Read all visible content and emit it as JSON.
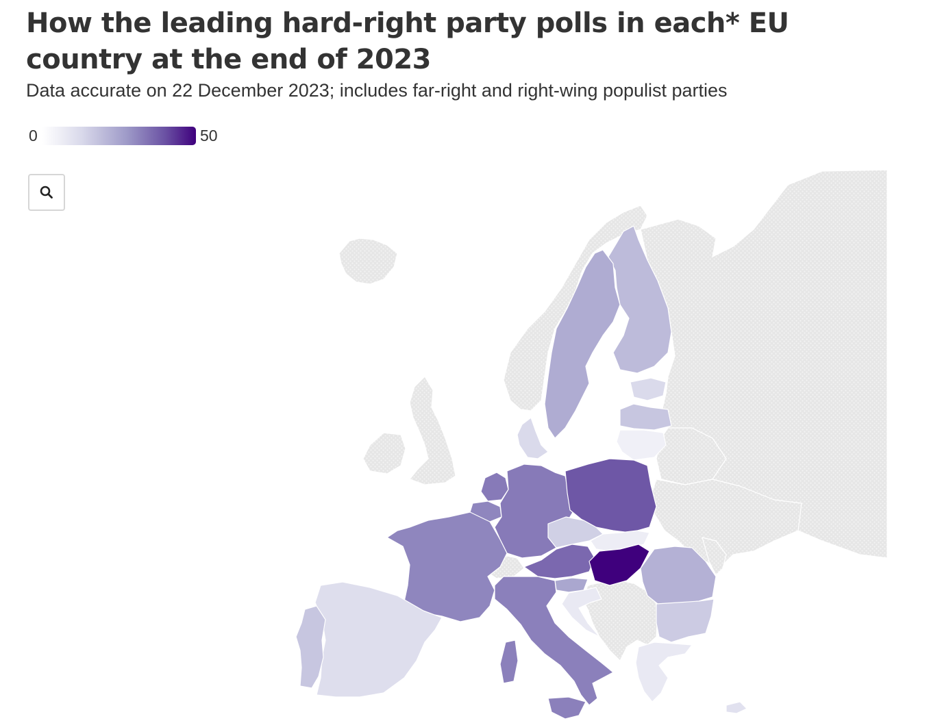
{
  "header": {
    "title": "How the leading hard-right party polls in each* EU country at the end of 2023",
    "subtitle": "Data accurate on 22 December 2023; includes far-right and right-wing populist parties"
  },
  "legend": {
    "min_label": "0",
    "max_label": "50",
    "min": 0,
    "max": 50,
    "color_low": "#ffffff",
    "color_high": "#3f007d"
  },
  "zoom": {
    "icon": "search-icon"
  },
  "colors": {
    "non_eu": "#e6e6e6",
    "non_eu_dots": "#f3f3f3",
    "border": "#ffffff"
  },
  "countries": [
    {
      "name": "Hungary",
      "shade": 50
    },
    {
      "name": "Poland",
      "shade": 34
    },
    {
      "name": "Austria",
      "shade": 31
    },
    {
      "name": "Germany",
      "shade": 28
    },
    {
      "name": "Netherlands",
      "shade": 28
    },
    {
      "name": "Italy",
      "shade": 27
    },
    {
      "name": "France",
      "shade": 26
    },
    {
      "name": "Belgium",
      "shade": 26
    },
    {
      "name": "Slovenia",
      "shade": 20
    },
    {
      "name": "Sweden",
      "shade": 19
    },
    {
      "name": "Finland",
      "shade": 16
    },
    {
      "name": "Romania",
      "shade": 18
    },
    {
      "name": "Latvia",
      "shade": 14
    },
    {
      "name": "Portugal",
      "shade": 14
    },
    {
      "name": "Bulgaria",
      "shade": 13
    },
    {
      "name": "Czechia",
      "shade": 12
    },
    {
      "name": "Denmark",
      "shade": 10
    },
    {
      "name": "Estonia",
      "shade": 10
    },
    {
      "name": "Spain",
      "shade": 9
    },
    {
      "name": "Greece",
      "shade": 6
    },
    {
      "name": "Slovakia",
      "shade": 5
    },
    {
      "name": "Lithuania",
      "shade": 4
    },
    {
      "name": "Cyprus",
      "shade": 8
    },
    {
      "name": "Croatia",
      "shade": 6
    }
  ],
  "non_eu_regions": [
    "Russia",
    "Belarus",
    "Ukraine",
    "Moldova",
    "Norway",
    "United Kingdom",
    "Ireland",
    "Iceland",
    "Switzerland",
    "Serbia",
    "Bosnia and Herzegovina",
    "Montenegro",
    "Albania",
    "North Macedonia",
    "Kosovo",
    "Luxembourg",
    "Malta"
  ]
}
